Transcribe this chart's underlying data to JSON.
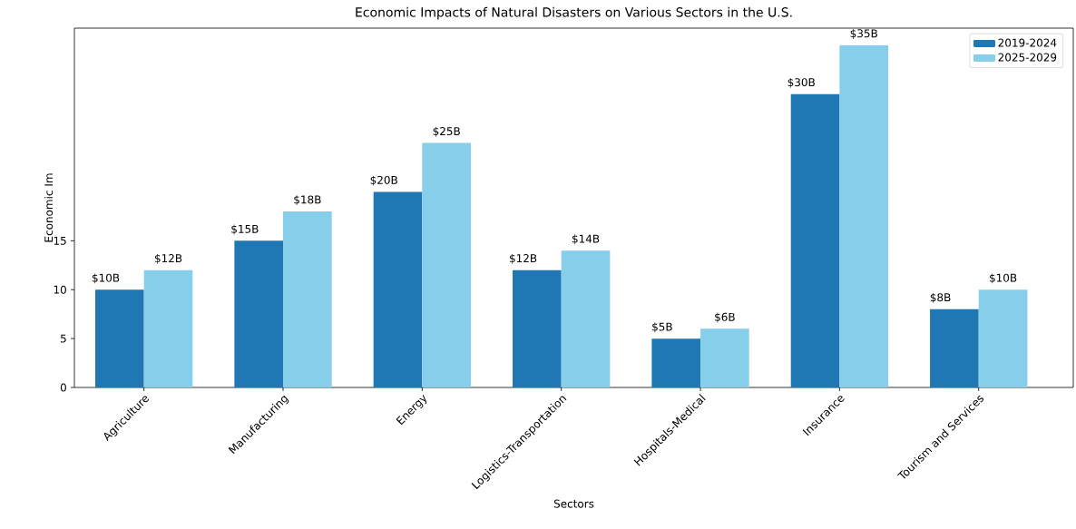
{
  "chart_data": {
    "type": "bar",
    "title": "Economic Impacts of Natural Disasters on Various Sectors in the U.S.",
    "xlabel": "Sectors",
    "ylabel": "Economic Im",
    "categories": [
      "Agriculture",
      "Manufacturing",
      "Energy",
      "Logistics-Transportation",
      "Hospitals-Medical",
      "Insurance",
      "Tourism and Services"
    ],
    "series": [
      {
        "name": "2019-2024",
        "color": "#1f77b4",
        "values": [
          10,
          15,
          20,
          12,
          5,
          30,
          8
        ],
        "value_labels": [
          "$10B",
          "$15B",
          "$20B",
          "$12B",
          "$5B",
          "$30B",
          "$8B"
        ]
      },
      {
        "name": "2025-2029",
        "color": "#87ceeb",
        "values": [
          12,
          18,
          25,
          14,
          6,
          35,
          10
        ],
        "value_labels": [
          "$12B",
          "$18B",
          "$25B",
          "$14B",
          "$6B",
          "$35B",
          "$10B"
        ]
      }
    ],
    "ylim": [
      0,
      36.75
    ],
    "yticks": [
      0,
      5,
      10,
      15
    ],
    "legend": "top right"
  }
}
